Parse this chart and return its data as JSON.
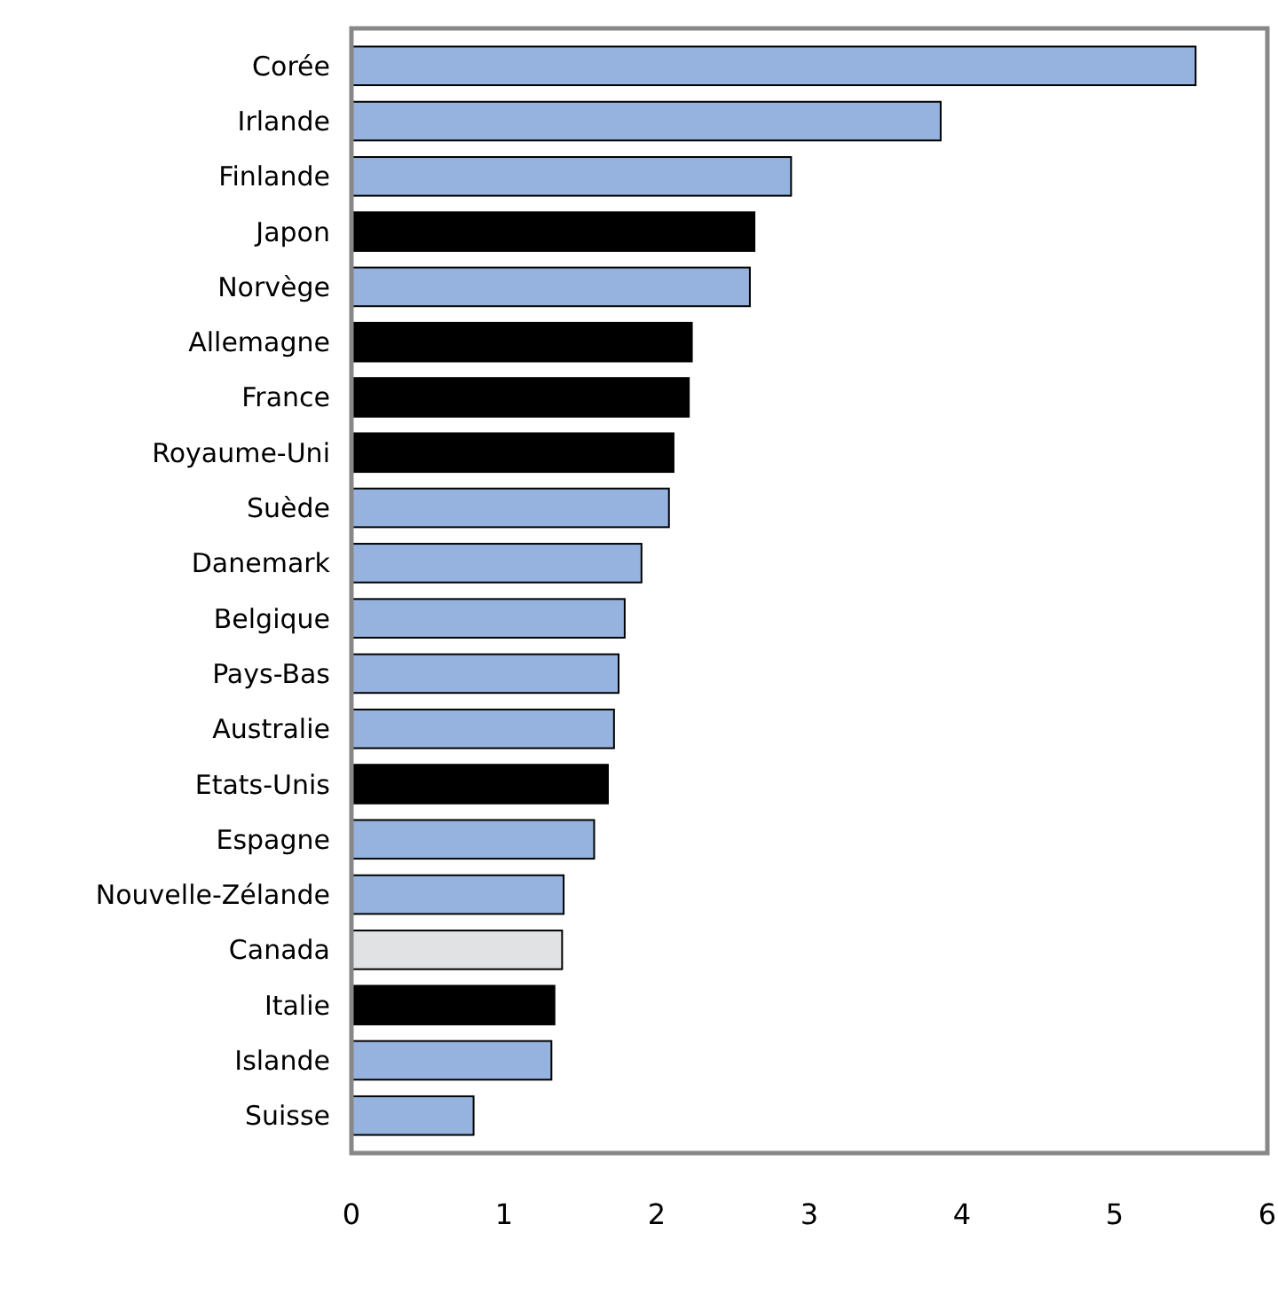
{
  "chart_data": {
    "type": "bar",
    "orientation": "horizontal",
    "categories": [
      "Corée",
      "Irlande",
      "Finlande",
      "Japon",
      "Norvège",
      "Allemagne",
      "France",
      "Royaume-Uni",
      "Suède",
      "Danemark",
      "Belgique",
      "Pays-Bas",
      "Australie",
      "Etats-Unis",
      "Espagne",
      "Nouvelle-Zélande",
      "Canada",
      "Italie",
      "Islande",
      "Suisse"
    ],
    "values": [
      5.53,
      3.86,
      2.88,
      2.64,
      2.61,
      2.23,
      2.21,
      2.11,
      2.08,
      1.9,
      1.79,
      1.75,
      1.72,
      1.68,
      1.59,
      1.39,
      1.38,
      1.33,
      1.31,
      0.8
    ],
    "colors": [
      "#95b3de",
      "#95b3de",
      "#95b3de",
      "#000000",
      "#95b3de",
      "#000000",
      "#000000",
      "#000000",
      "#95b3de",
      "#95b3de",
      "#95b3de",
      "#95b3de",
      "#95b3de",
      "#000000",
      "#95b3de",
      "#95b3de",
      "#e1e2e4",
      "#000000",
      "#95b3de",
      "#95b3de"
    ],
    "xlim": [
      0,
      6
    ],
    "xticks": [
      0,
      1,
      2,
      3,
      4,
      5,
      6
    ],
    "grid": false
  }
}
